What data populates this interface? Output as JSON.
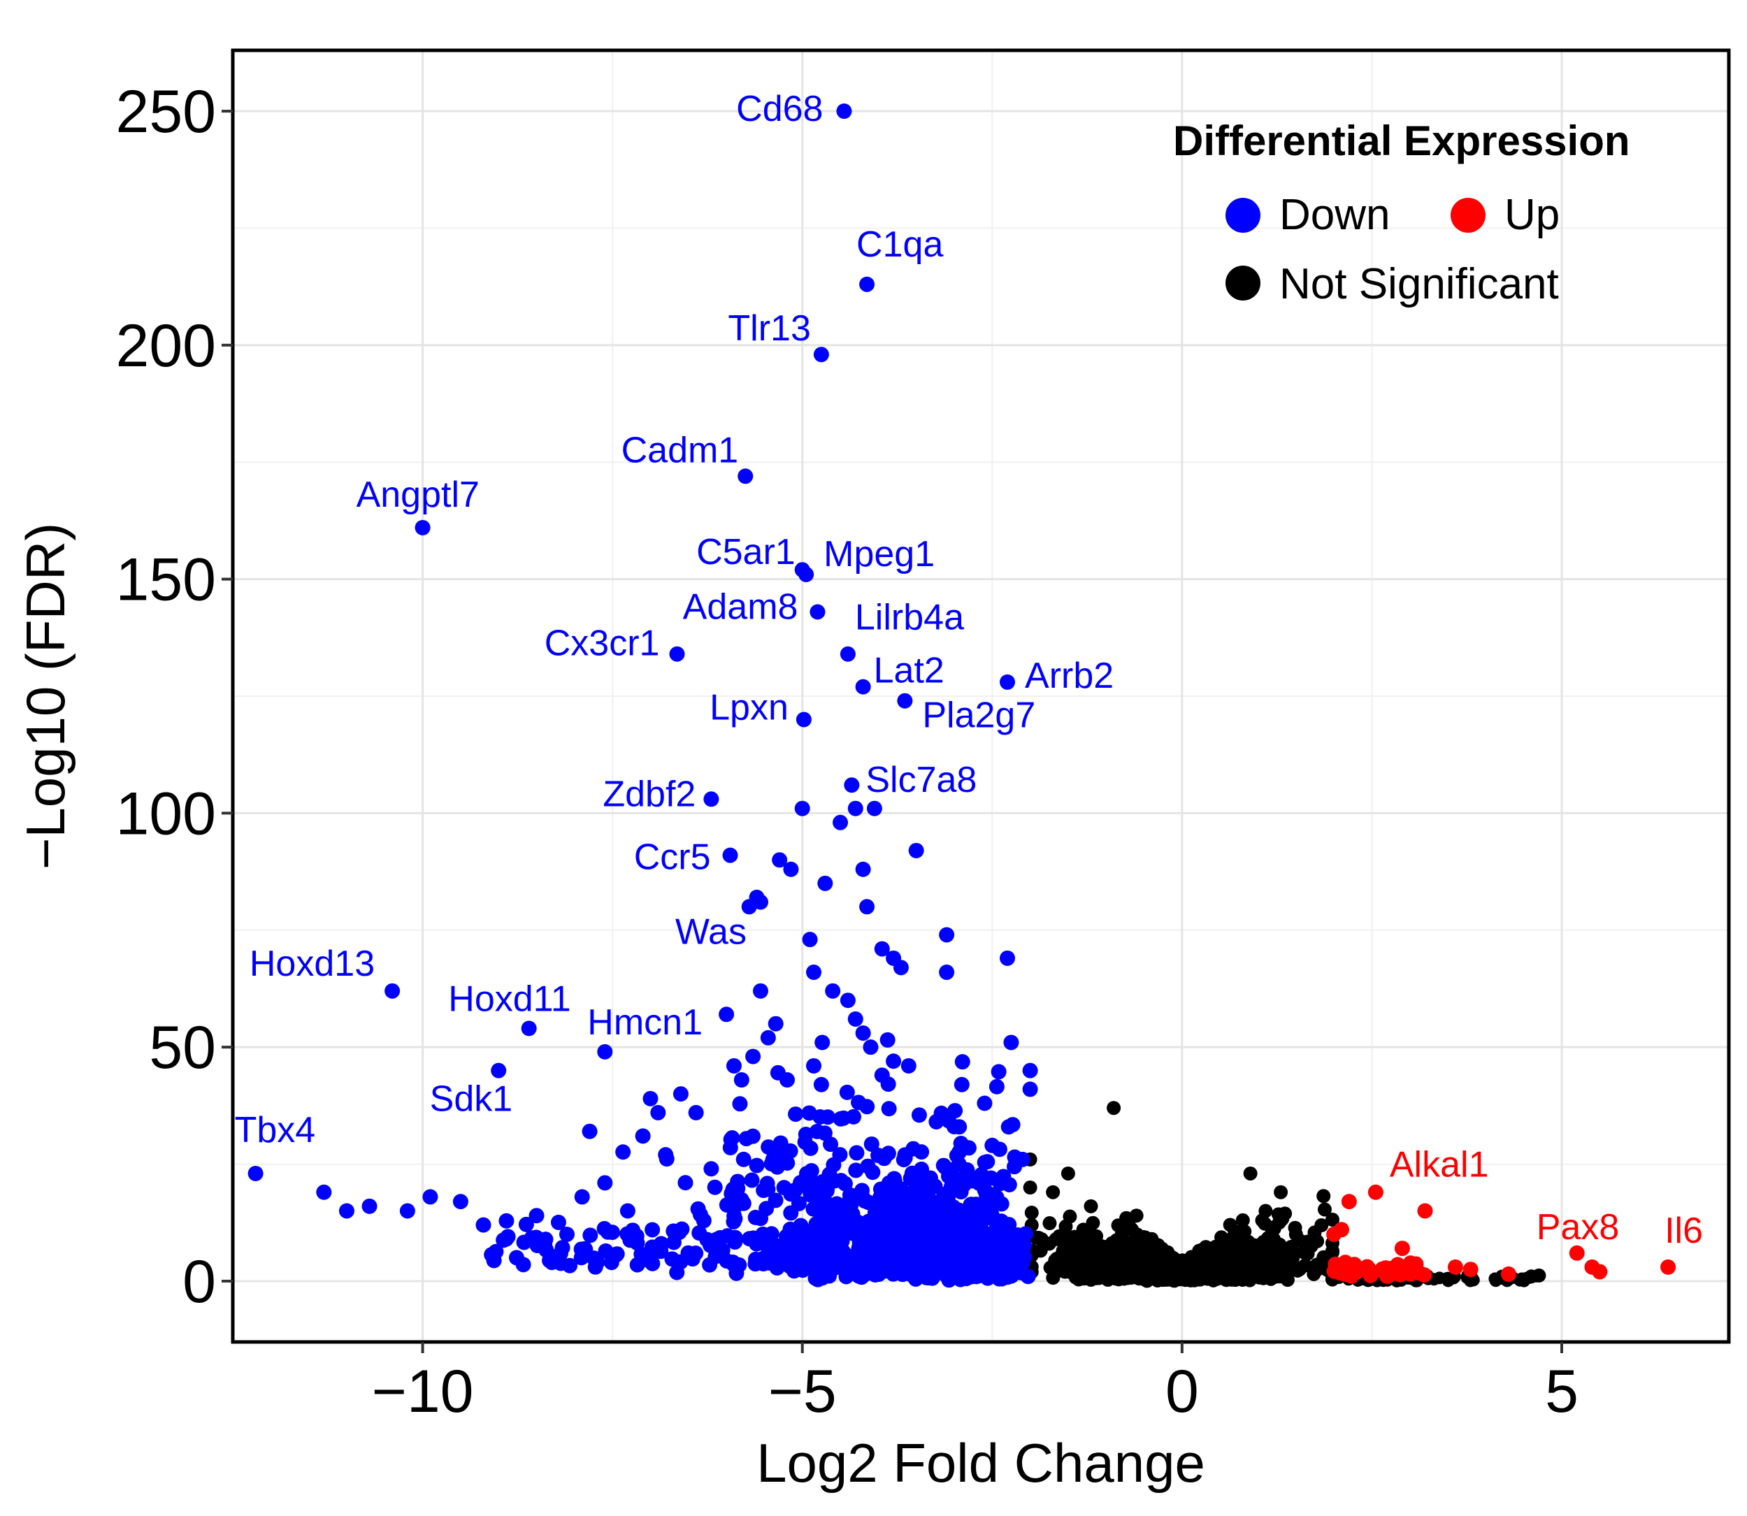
{
  "chart_data": {
    "type": "scatter",
    "title": "",
    "xlabel": "Log2 Fold Change",
    "ylabel": "−Log10 (FDR)",
    "xlim": [
      -12.5,
      7.2
    ],
    "ylim": [
      -13,
      263
    ],
    "xticks": [
      -10,
      -5,
      0,
      5
    ],
    "xtick_labels": [
      "−10",
      "−5",
      "0",
      "5"
    ],
    "yticks": [
      0,
      50,
      100,
      150,
      200,
      250
    ],
    "ytick_labels": [
      "0",
      "50",
      "100",
      "150",
      "200",
      "250"
    ],
    "grid": true,
    "legend": {
      "title": "Differential Expression",
      "position": "top-right",
      "entries": [
        {
          "label": "Down",
          "color": "#0000ff"
        },
        {
          "label": "Up",
          "color": "#ff0000"
        },
        {
          "label": "Not Significant",
          "color": "#000000"
        }
      ]
    },
    "colors": {
      "Down": "#0000ff",
      "Up": "#ff0000",
      "Not Significant": "#000000"
    },
    "labeled_genes": [
      {
        "gene": "Cd68",
        "x": -4.45,
        "y": 250,
        "group": "Down"
      },
      {
        "gene": "C1qa",
        "x": -4.15,
        "y": 213,
        "group": "Down"
      },
      {
        "gene": "Tlr13",
        "x": -4.75,
        "y": 198,
        "group": "Down"
      },
      {
        "gene": "Cadm1",
        "x": -5.75,
        "y": 172,
        "group": "Down"
      },
      {
        "gene": "Angptl7",
        "x": -10.0,
        "y": 161,
        "group": "Down"
      },
      {
        "gene": "C5ar1",
        "x": -5.0,
        "y": 152,
        "group": "Down"
      },
      {
        "gene": "Mpeg1",
        "x": -4.95,
        "y": 151,
        "group": "Down"
      },
      {
        "gene": "Adam8",
        "x": -4.8,
        "y": 143,
        "group": "Down"
      },
      {
        "gene": "Lilrb4a",
        "x": -4.4,
        "y": 134,
        "group": "Down"
      },
      {
        "gene": "Cx3cr1",
        "x": -6.65,
        "y": 134,
        "group": "Down"
      },
      {
        "gene": "Lat2",
        "x": -4.2,
        "y": 127,
        "group": "Down"
      },
      {
        "gene": "Arrb2",
        "x": -2.3,
        "y": 128,
        "group": "Down"
      },
      {
        "gene": "Pla2g7",
        "x": -3.65,
        "y": 124,
        "group": "Down"
      },
      {
        "gene": "Lpxn",
        "x": -4.98,
        "y": 120,
        "group": "Down"
      },
      {
        "gene": "Slc7a8",
        "x": -4.35,
        "y": 106,
        "group": "Down"
      },
      {
        "gene": "Zdbf2",
        "x": -6.2,
        "y": 103,
        "group": "Down"
      },
      {
        "gene": "Ccr5",
        "x": -5.95,
        "y": 91,
        "group": "Down"
      },
      {
        "gene": "Was",
        "x": -5.55,
        "y": 81,
        "group": "Down"
      },
      {
        "gene": "Hoxd13",
        "x": -10.4,
        "y": 62,
        "group": "Down"
      },
      {
        "gene": "Hoxd11",
        "x": -8.6,
        "y": 54,
        "group": "Down"
      },
      {
        "gene": "Hmcn1",
        "x": -7.6,
        "y": 49,
        "group": "Down"
      },
      {
        "gene": "Sdk1",
        "x": -9.0,
        "y": 45,
        "group": "Down"
      },
      {
        "gene": "Tbx4",
        "x": -12.2,
        "y": 23,
        "group": "Down"
      },
      {
        "gene": "Alkal1",
        "x": 2.55,
        "y": 19,
        "group": "Up"
      },
      {
        "gene": "Pax8",
        "x": 5.2,
        "y": 6,
        "group": "Up"
      },
      {
        "gene": "Il6",
        "x": 6.4,
        "y": 3,
        "group": "Up"
      }
    ],
    "extra_points": {
      "Down": [
        [
          -11.3,
          19
        ],
        [
          -11.0,
          15
        ],
        [
          -10.7,
          16
        ],
        [
          -10.2,
          15
        ],
        [
          -9.9,
          18
        ],
        [
          -9.5,
          17
        ],
        [
          -9.2,
          12
        ],
        [
          -8.9,
          9
        ],
        [
          -8.5,
          14
        ],
        [
          -8.1,
          10
        ],
        [
          -7.8,
          32
        ],
        [
          -7.9,
          18
        ],
        [
          -7.6,
          21
        ],
        [
          -7.3,
          15
        ],
        [
          -7.1,
          31
        ],
        [
          -7.0,
          39
        ],
        [
          -6.9,
          36
        ],
        [
          -6.8,
          27
        ],
        [
          -6.6,
          40
        ],
        [
          -6.4,
          36
        ],
        [
          -6.2,
          24
        ],
        [
          -6.0,
          57
        ],
        [
          -5.9,
          46
        ],
        [
          -5.7,
          80
        ],
        [
          -5.6,
          82
        ],
        [
          -5.55,
          62
        ],
        [
          -5.45,
          52
        ],
        [
          -5.35,
          55
        ],
        [
          -5.3,
          90
        ],
        [
          -5.15,
          88
        ],
        [
          -5.0,
          101
        ],
        [
          -4.9,
          73
        ],
        [
          -4.85,
          66
        ],
        [
          -4.7,
          85
        ],
        [
          -4.5,
          98
        ],
        [
          -4.3,
          101
        ],
        [
          -4.2,
          88
        ],
        [
          -4.05,
          101
        ],
        [
          -4.15,
          80
        ],
        [
          -3.95,
          71
        ],
        [
          -3.8,
          69
        ],
        [
          -3.7,
          67
        ],
        [
          -3.5,
          92
        ],
        [
          -3.1,
          74
        ],
        [
          -3.1,
          66
        ],
        [
          -2.3,
          69
        ],
        [
          -2.25,
          51
        ],
        [
          -2.0,
          45
        ],
        [
          -2.0,
          41
        ],
        [
          -2.6,
          38
        ],
        [
          -2.9,
          42
        ],
        [
          -3.0,
          33
        ],
        [
          -2.5,
          29
        ],
        [
          -2.1,
          26
        ],
        [
          -4.6,
          62
        ],
        [
          -4.4,
          60
        ],
        [
          -4.3,
          56
        ],
        [
          -4.2,
          53
        ],
        [
          -4.1,
          50
        ],
        [
          -3.8,
          47
        ],
        [
          -3.6,
          46
        ],
        [
          -3.95,
          44
        ],
        [
          -5.65,
          48
        ],
        [
          -5.8,
          43
        ],
        [
          -5.2,
          43
        ],
        [
          -4.75,
          42
        ],
        [
          -4.85,
          46
        ]
      ],
      "Up": [
        [
          2.2,
          17
        ],
        [
          2.9,
          7
        ],
        [
          3.2,
          15
        ],
        [
          2.0,
          10
        ],
        [
          2.1,
          11
        ],
        [
          3.6,
          3
        ],
        [
          3.8,
          2.5
        ],
        [
          4.3,
          1.5
        ],
        [
          5.4,
          3
        ],
        [
          5.5,
          2
        ]
      ],
      "Not Significant": [
        [
          -2.0,
          26
        ],
        [
          -1.5,
          23
        ],
        [
          -1.7,
          19
        ],
        [
          -0.9,
          37
        ],
        [
          -1.2,
          16
        ],
        [
          -0.7,
          12
        ],
        [
          -0.4,
          9
        ],
        [
          0.9,
          23
        ],
        [
          1.3,
          19
        ],
        [
          1.1,
          15
        ],
        [
          0.8,
          13
        ],
        [
          1.5,
          10
        ],
        [
          1.7,
          8
        ],
        [
          -2.0,
          20
        ],
        [
          -1.3,
          11
        ],
        [
          -0.6,
          14
        ],
        [
          3.5,
          0.5
        ],
        [
          4.6,
          1
        ],
        [
          4.7,
          1.2
        ]
      ]
    }
  }
}
